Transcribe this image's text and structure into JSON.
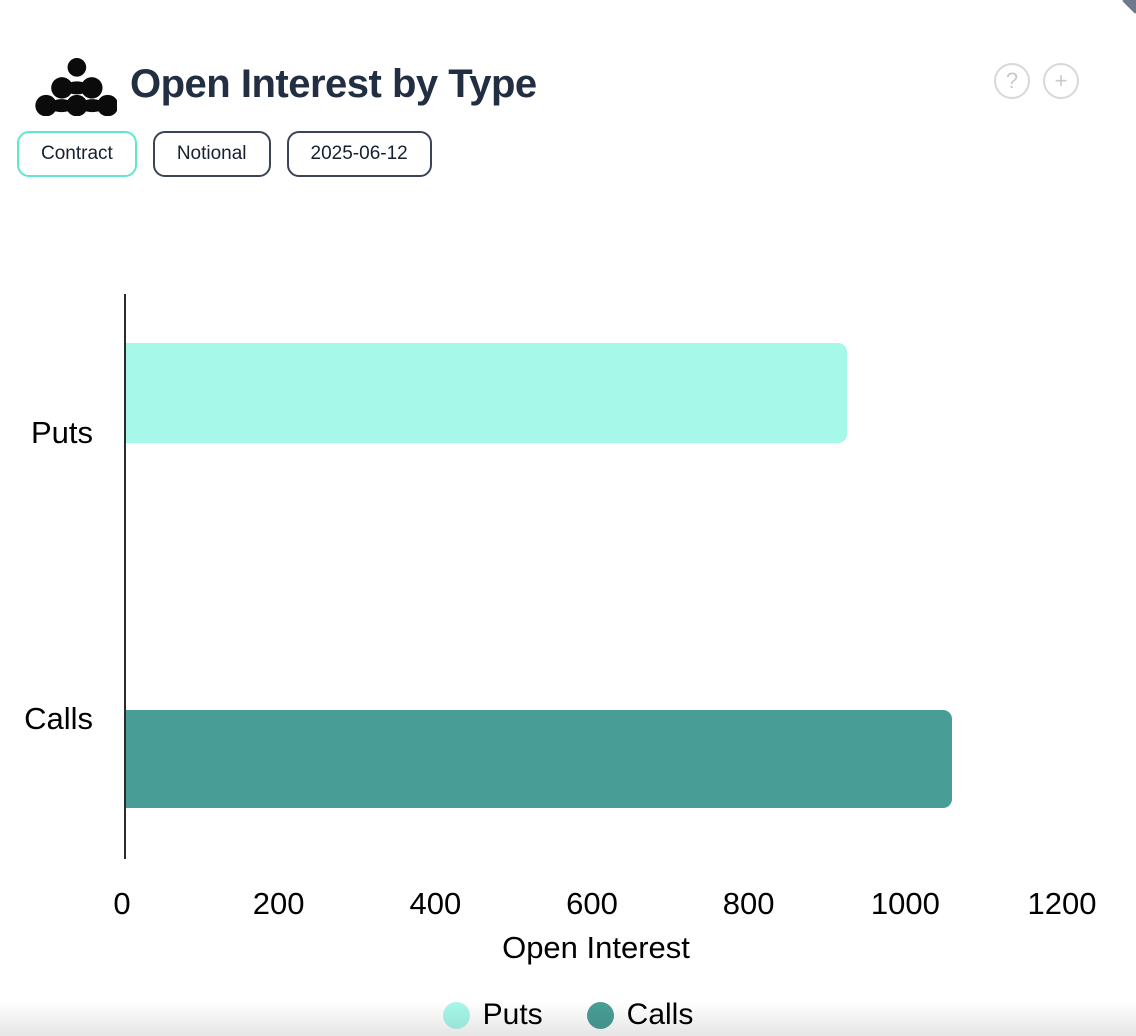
{
  "header": {
    "title": "Open Interest by Type",
    "help_icon": "?",
    "add_icon": "+"
  },
  "controls": {
    "contract_label": "Contract",
    "notional_label": "Notional",
    "date_label": "2025-06-12"
  },
  "chart_data": {
    "type": "bar",
    "orientation": "horizontal",
    "title": "Open Interest by Type",
    "categories": [
      "Puts",
      "Calls"
    ],
    "values": [
      925,
      1060
    ],
    "bar_colors": [
      "#a6f8e9",
      "#489e96"
    ],
    "xlabel": "Open Interest",
    "xticks": [
      0,
      200,
      400,
      600,
      800,
      1000,
      1200
    ],
    "xlim": [
      0,
      1200
    ],
    "grid": false,
    "legend": {
      "position": "bottom",
      "items": [
        {
          "label": "Puts",
          "color": "#a6f8e9"
        },
        {
          "label": "Calls",
          "color": "#489e96"
        }
      ]
    }
  },
  "colors": {
    "accent_mint": "#5ee9ce",
    "dark_navy": "#222f43",
    "axis_line": "#2b2b2b",
    "icon_gray": "#d6d8da"
  }
}
